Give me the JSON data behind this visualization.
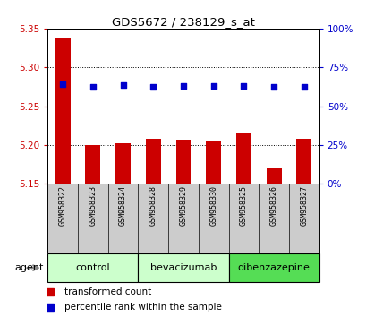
{
  "title": "GDS5672 / 238129_s_at",
  "samples": [
    "GSM958322",
    "GSM958323",
    "GSM958324",
    "GSM958328",
    "GSM958329",
    "GSM958330",
    "GSM958325",
    "GSM958326",
    "GSM958327"
  ],
  "bar_values": [
    5.338,
    5.2,
    5.202,
    5.208,
    5.207,
    5.206,
    5.216,
    5.17,
    5.208
  ],
  "percentile_values": [
    5.278,
    5.275,
    5.277,
    5.275,
    5.276,
    5.276,
    5.276,
    5.275,
    5.275
  ],
  "bar_base": 5.15,
  "ylim": [
    5.15,
    5.35
  ],
  "y2lim": [
    0,
    100
  ],
  "yticks": [
    5.15,
    5.2,
    5.25,
    5.3,
    5.35
  ],
  "y2ticks": [
    0,
    25,
    50,
    75,
    100
  ],
  "bar_color": "#cc0000",
  "dot_color": "#0000cc",
  "group_labels": [
    "control",
    "bevacizumab",
    "dibenzazepine"
  ],
  "group_starts": [
    0,
    3,
    6
  ],
  "group_ends": [
    2,
    5,
    8
  ],
  "group_colors": [
    "#ccffcc",
    "#ccffcc",
    "#55dd55"
  ],
  "agent_label": "agent",
  "legend_bar_label": "transformed count",
  "legend_dot_label": "percentile rank within the sample",
  "background_color": "#ffffff",
  "plot_bg_color": "#ffffff",
  "tick_color_left": "#cc0000",
  "tick_color_right": "#0000cc",
  "xtick_bg_color": "#cccccc"
}
